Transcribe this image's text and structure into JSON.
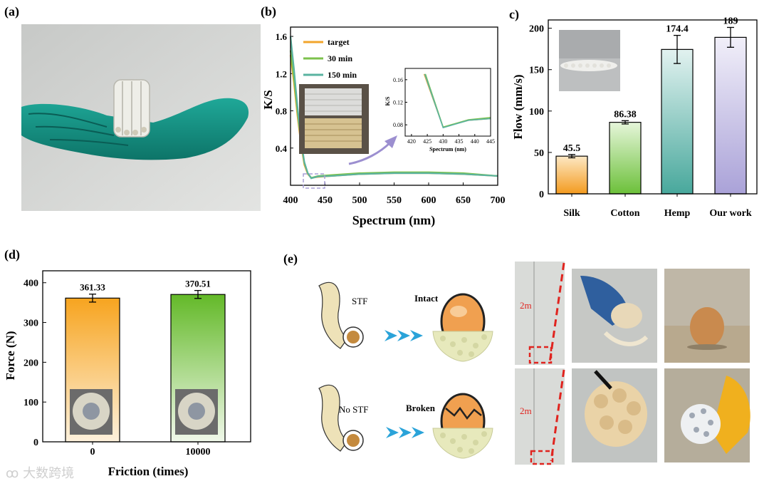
{
  "panels": {
    "a": {
      "label": "(a)"
    },
    "b": {
      "label": "(b)"
    },
    "c": {
      "label": "(c)"
    },
    "d": {
      "label": "(d)"
    },
    "e": {
      "label": "(e)"
    }
  },
  "panel_e": {
    "stf_label": "STF",
    "no_stf_label": "No STF",
    "intact_label": "Intact",
    "broken_label": "Broken",
    "height_top": "2m",
    "height_bottom": "2m"
  },
  "watermark": "大数跨境",
  "colors": {
    "orange": "#f2a52c",
    "green": "#7cc24c",
    "teal": "#5ab3a0",
    "lavender": "#c4bee0",
    "arrow": "#2aa3d9"
  },
  "chart_data": [
    {
      "id": "b",
      "type": "line",
      "xlabel": "Spectrum (nm)",
      "ylabel": "K/S",
      "xlim": [
        400,
        700
      ],
      "ylim": [
        0,
        1.7
      ],
      "xticks": [
        400,
        450,
        500,
        550,
        600,
        650,
        700
      ],
      "yticks": [
        0.4,
        0.8,
        1.2,
        1.6
      ],
      "legend_position": "top-left",
      "series": [
        {
          "name": "target",
          "color": "#f2a52c",
          "x": [
            400,
            405,
            410,
            415,
            420,
            425,
            430,
            440,
            460,
            500,
            550,
            600,
            650,
            700
          ],
          "y": [
            1.4,
            1.1,
            0.75,
            0.45,
            0.22,
            0.12,
            0.08,
            0.09,
            0.1,
            0.12,
            0.13,
            0.13,
            0.12,
            0.1
          ]
        },
        {
          "name": "30 min",
          "color": "#7cc24c",
          "x": [
            400,
            405,
            410,
            415,
            420,
            425,
            430,
            440,
            460,
            500,
            550,
            600,
            650,
            700
          ],
          "y": [
            1.45,
            1.15,
            0.8,
            0.48,
            0.24,
            0.13,
            0.08,
            0.1,
            0.11,
            0.13,
            0.14,
            0.14,
            0.13,
            0.1
          ]
        },
        {
          "name": "150 min",
          "color": "#5ab3a0",
          "x": [
            400,
            405,
            410,
            415,
            420,
            425,
            430,
            440,
            460,
            500,
            550,
            600,
            650,
            700
          ],
          "y": [
            1.6,
            1.25,
            0.85,
            0.5,
            0.25,
            0.13,
            0.075,
            0.095,
            0.1,
            0.12,
            0.13,
            0.13,
            0.12,
            0.1
          ]
        }
      ],
      "inset": {
        "xlabel": "Spectrum (nm)",
        "ylabel": "K/S",
        "xlim": [
          418,
          445
        ],
        "ylim": [
          0.06,
          0.18
        ],
        "xticks": [
          420,
          425,
          430,
          435,
          440,
          445
        ],
        "yticks": [
          0.08,
          0.12,
          0.16
        ],
        "series": [
          {
            "name": "target",
            "color": "#f2a52c",
            "x": [
              424,
              430,
              438,
              445
            ],
            "y": [
              0.17,
              0.076,
              0.088,
              0.091
            ]
          },
          {
            "name": "30 min",
            "color": "#7cc24c",
            "x": [
              424.4,
              430,
              438,
              445
            ],
            "y": [
              0.17,
              0.076,
              0.089,
              0.093
            ]
          },
          {
            "name": "150 min",
            "color": "#5ab3a0",
            "x": [
              424.2,
              430,
              438,
              445
            ],
            "y": [
              0.17,
              0.075,
              0.088,
              0.091
            ]
          }
        ]
      }
    },
    {
      "id": "c",
      "type": "bar",
      "ylabel": "Flow (mm/s)",
      "categories": [
        "Silk",
        "Cotton",
        "Hemp",
        "Our work"
      ],
      "values": [
        45.5,
        86.38,
        174.4,
        189
      ],
      "value_labels": [
        "45.5",
        "86.38",
        "174.4",
        "189"
      ],
      "errors": [
        2,
        2,
        17,
        12
      ],
      "bar_colors": [
        [
          "#f39b1f",
          "#fde8c4"
        ],
        [
          "#6cc03a",
          "#e6f6da"
        ],
        [
          "#48a89c",
          "#e2f2f0"
        ],
        [
          "#aaa2d8",
          "#f1eff9"
        ]
      ],
      "ylim": [
        0,
        210
      ],
      "yticks": [
        0,
        50,
        100,
        150,
        200
      ]
    },
    {
      "id": "d",
      "type": "bar",
      "ylabel": "Force (N)",
      "xlabel": "Friction (times)",
      "categories": [
        "0",
        "10000"
      ],
      "values": [
        361.33,
        370.51
      ],
      "value_labels": [
        "361.33",
        "370.51"
      ],
      "errors": [
        10,
        10
      ],
      "bar_colors": [
        [
          "#f7a41f",
          "#fdf1dc"
        ],
        [
          "#63b928",
          "#f0f8ea"
        ]
      ],
      "ylim": [
        0,
        430
      ],
      "yticks": [
        0,
        100,
        200,
        300,
        400
      ]
    }
  ]
}
